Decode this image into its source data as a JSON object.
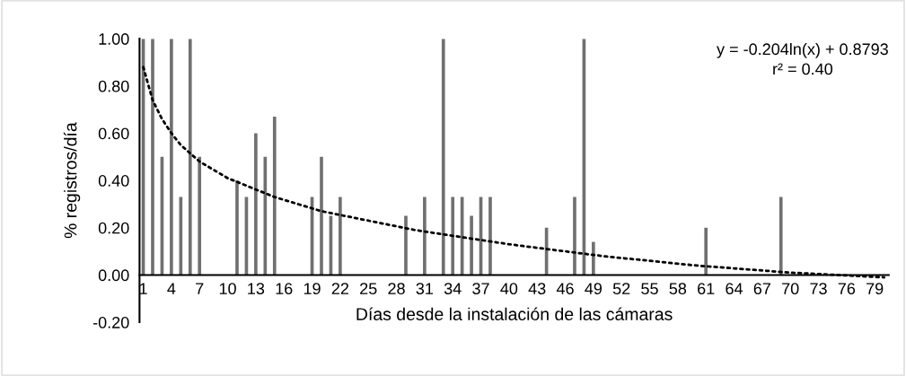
{
  "chart_data": {
    "type": "bar",
    "xlabel": "Días desde la instalación de las cámaras",
    "ylabel": "% registros/día",
    "x": [
      1,
      2,
      3,
      4,
      5,
      6,
      7,
      11,
      12,
      13,
      14,
      15,
      19,
      20,
      21,
      22,
      29,
      31,
      33,
      34,
      35,
      36,
      37,
      38,
      44,
      47,
      48,
      49,
      61,
      69
    ],
    "series": [
      {
        "color": "#707070",
        "values": [
          1,
          1,
          0.5,
          1,
          0.33,
          1,
          0.5,
          0.4,
          0.33,
          0.6,
          0.5,
          0.67,
          0.33,
          0.5,
          0.25,
          0.33,
          0.25,
          0.33,
          1,
          0.33,
          0.33,
          0.25,
          0.33,
          0.33,
          0.2,
          0.33,
          1,
          0.14,
          0.2,
          0.33
        ]
      },
      {
        "type": "line",
        "color": "#000000",
        "line_style": "dotted",
        "marker": "none",
        "x": [
          1,
          2,
          3,
          4,
          5,
          7,
          10,
          15,
          20,
          30,
          40,
          50,
          60,
          70,
          80
        ],
        "values": [
          0.88,
          0.74,
          0.66,
          0.6,
          0.55,
          0.48,
          0.41,
          0.33,
          0.27,
          0.19,
          0.13,
          0.08,
          0.04,
          0.01,
          -0.01
        ]
      }
    ],
    "xlim": [
      0.6,
      80.5
    ],
    "xticks": [
      1,
      4,
      7,
      10,
      13,
      16,
      19,
      22,
      25,
      28,
      31,
      34,
      37,
      40,
      43,
      46,
      49,
      52,
      55,
      58,
      61,
      64,
      67,
      70,
      73,
      76,
      79
    ],
    "ylim": [
      -0.2,
      1.0
    ],
    "yticks": [
      {
        "value": -0.2,
        "label": "-0.20"
      },
      {
        "value": 0,
        "label": "0.00"
      },
      {
        "value": 0.2,
        "label": "0.20"
      },
      {
        "value": 0.4,
        "label": "0.40"
      },
      {
        "value": 0.6,
        "label": "0.60"
      },
      {
        "value": 0.8,
        "label": "0.80"
      },
      {
        "value": 1.0,
        "label": "1.00"
      }
    ],
    "grid": false,
    "legend": false,
    "annotations": [
      "y = -0.204ln(x) + 0.8793",
      "r² = 0.40"
    ]
  }
}
